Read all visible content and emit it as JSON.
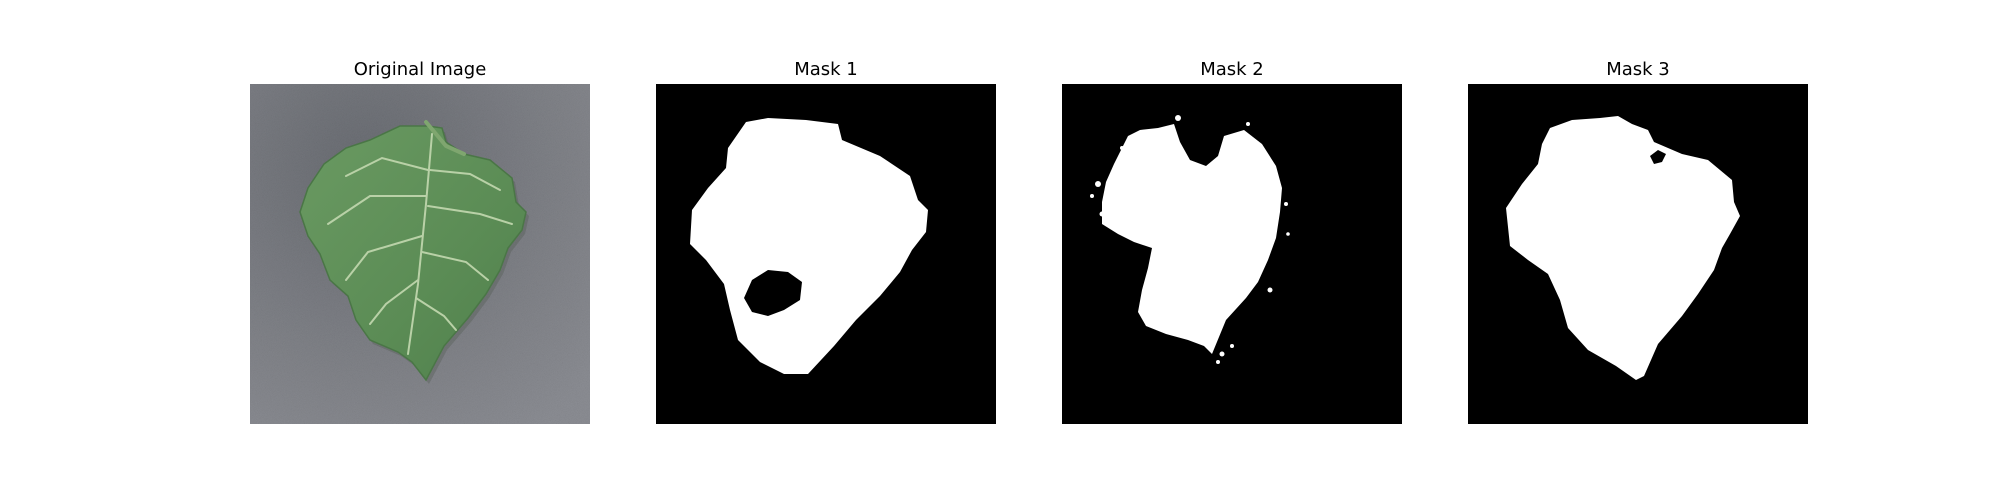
{
  "panels": [
    {
      "title": "Original Image",
      "kind": "photo"
    },
    {
      "title": "Mask 1",
      "kind": "mask"
    },
    {
      "title": "Mask 2",
      "kind": "mask"
    },
    {
      "title": "Mask 3",
      "kind": "mask"
    }
  ],
  "colors": {
    "page_background": "#ffffff",
    "mask_background": "#000000",
    "mask_foreground": "#ffffff",
    "photo_background": "#7d7f85",
    "leaf_green": "#5f8f58",
    "leaf_vein": "#b9d1a7"
  }
}
